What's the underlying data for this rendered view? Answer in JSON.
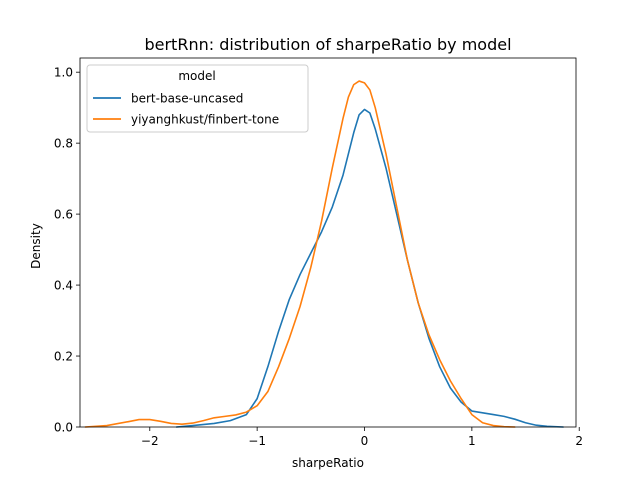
{
  "chart_data": {
    "type": "line",
    "title": "bertRnn: distribution of sharpeRatio by model",
    "xlabel": "sharpeRatio",
    "ylabel": "Density",
    "xlim": [
      -2.65,
      1.97
    ],
    "ylim": [
      0,
      1.04
    ],
    "x_ticks": [
      -2,
      -1,
      0,
      1,
      2
    ],
    "x_tick_labels": [
      "−2",
      "−1",
      "0",
      "1",
      "2"
    ],
    "y_ticks": [
      0.0,
      0.2,
      0.4,
      0.6,
      0.8,
      1.0
    ],
    "y_tick_labels": [
      "0.0",
      "0.2",
      "0.4",
      "0.6",
      "0.8",
      "1.0"
    ],
    "grid": false,
    "legend": {
      "title": "model",
      "placement": "top-left"
    },
    "series": [
      {
        "name": "bert-base-uncased",
        "color": "#1f77b4",
        "x": [
          -1.75,
          -1.6,
          -1.4,
          -1.25,
          -1.1,
          -1.0,
          -0.9,
          -0.8,
          -0.7,
          -0.6,
          -0.5,
          -0.4,
          -0.3,
          -0.2,
          -0.15,
          -0.1,
          -0.05,
          0.0,
          0.05,
          0.1,
          0.2,
          0.3,
          0.4,
          0.5,
          0.6,
          0.7,
          0.8,
          0.9,
          1.0,
          1.1,
          1.2,
          1.3,
          1.4,
          1.5,
          1.6,
          1.7,
          1.85
        ],
        "y": [
          0.0,
          0.004,
          0.01,
          0.018,
          0.035,
          0.08,
          0.17,
          0.27,
          0.36,
          0.43,
          0.49,
          0.55,
          0.62,
          0.71,
          0.77,
          0.83,
          0.88,
          0.895,
          0.885,
          0.84,
          0.73,
          0.6,
          0.47,
          0.35,
          0.25,
          0.17,
          0.11,
          0.07,
          0.045,
          0.04,
          0.035,
          0.03,
          0.022,
          0.012,
          0.005,
          0.002,
          0.0
        ]
      },
      {
        "name": "yiyanghkust/finbert-tone",
        "color": "#ff7f0e",
        "x": [
          -2.6,
          -2.4,
          -2.2,
          -2.1,
          -2.0,
          -1.9,
          -1.8,
          -1.7,
          -1.6,
          -1.5,
          -1.4,
          -1.3,
          -1.2,
          -1.1,
          -1.0,
          -0.9,
          -0.8,
          -0.7,
          -0.6,
          -0.5,
          -0.4,
          -0.3,
          -0.2,
          -0.15,
          -0.1,
          -0.05,
          0.0,
          0.05,
          0.1,
          0.2,
          0.3,
          0.4,
          0.5,
          0.6,
          0.7,
          0.8,
          0.9,
          1.0,
          1.1,
          1.2,
          1.3,
          1.4
        ],
        "y": [
          0.0,
          0.004,
          0.015,
          0.021,
          0.021,
          0.016,
          0.01,
          0.008,
          0.011,
          0.018,
          0.026,
          0.03,
          0.034,
          0.042,
          0.06,
          0.1,
          0.17,
          0.25,
          0.34,
          0.45,
          0.58,
          0.73,
          0.87,
          0.93,
          0.965,
          0.975,
          0.97,
          0.95,
          0.9,
          0.77,
          0.62,
          0.47,
          0.35,
          0.26,
          0.19,
          0.13,
          0.08,
          0.035,
          0.012,
          0.004,
          0.001,
          0.0
        ]
      }
    ]
  }
}
